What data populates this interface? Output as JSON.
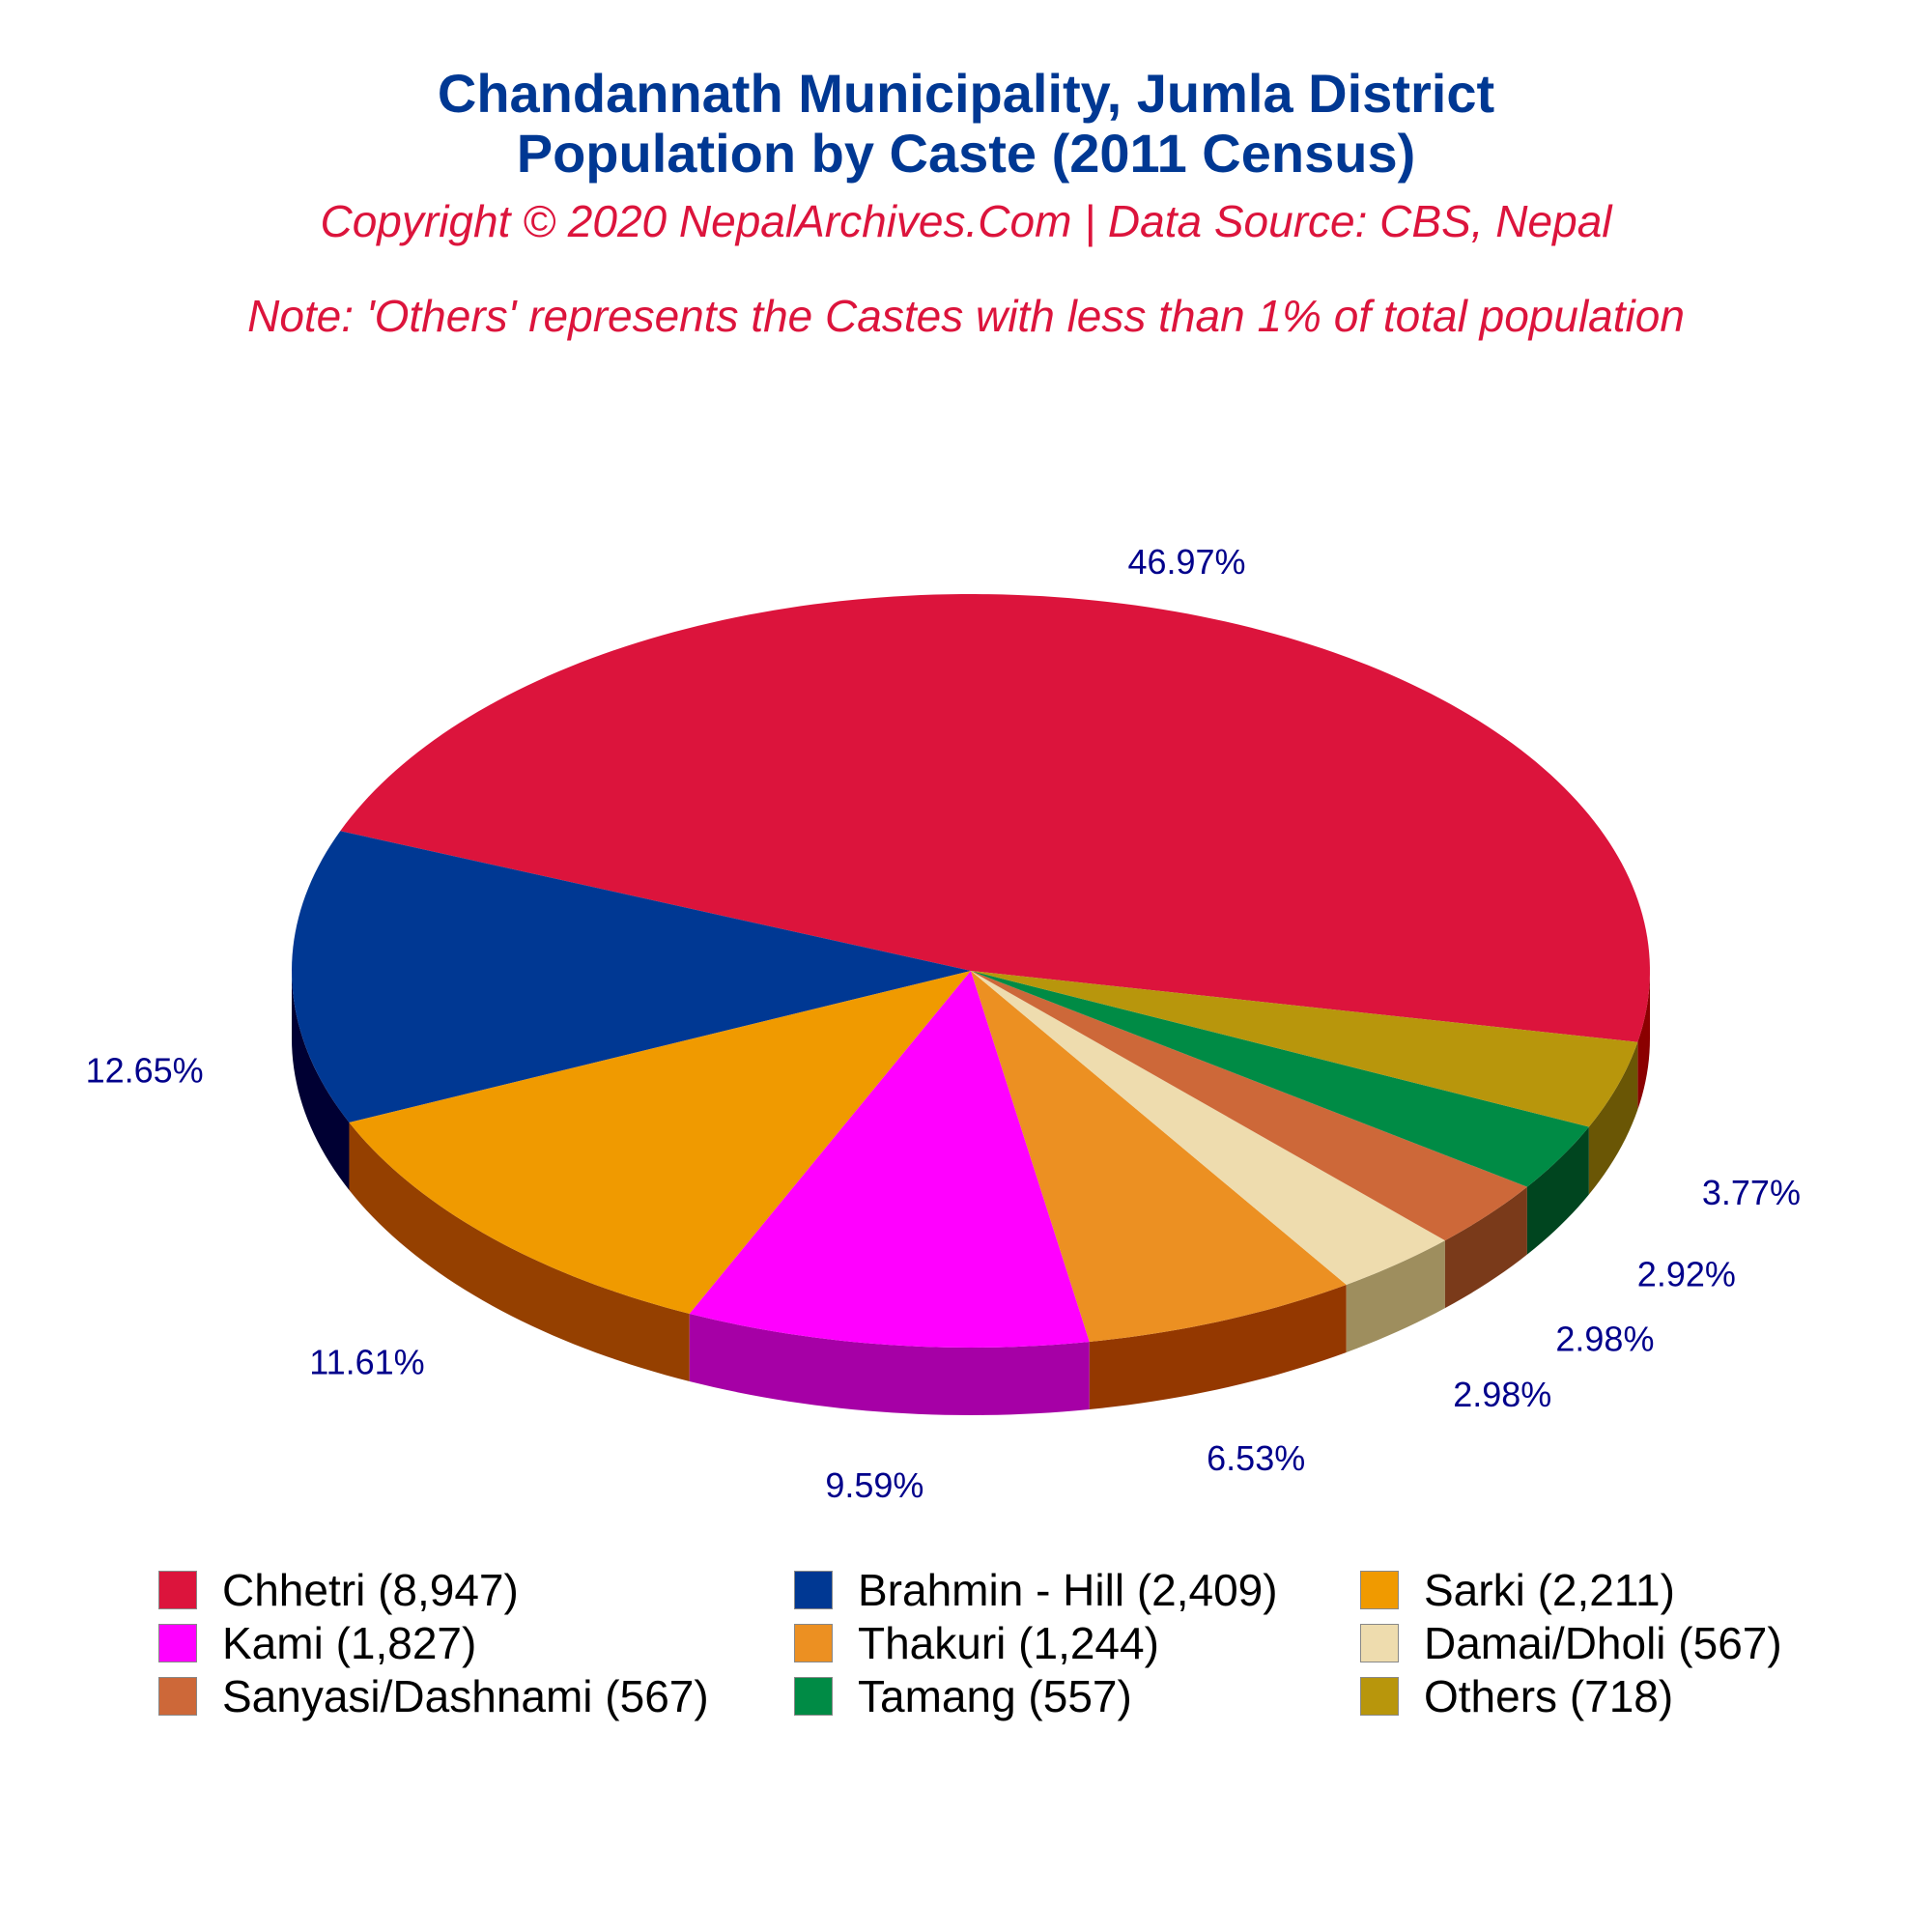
{
  "header": {
    "title_line1": "Chandannath Municipality, Jumla District",
    "title_line2": "Population by Caste (2011 Census)",
    "copyright": "Copyright © 2020 NepalArchives.Com | Data Source: CBS, Nepal",
    "note": "Note: 'Others' represents the Castes with less than 1% of total population"
  },
  "chart_data": {
    "type": "pie",
    "title": "Chandannath Municipality, Jumla District Population by Caste (2011 Census)",
    "subtitle": "Copyright © 2020 NepalArchives.Com | Data Source: CBS, Nepal",
    "annotation": "Note: 'Others' represents the Castes with less than 1% of total population",
    "legend_placement": "bottom",
    "slices": [
      {
        "label": "Chhetri (8,947)",
        "value": 8947,
        "percent_label": "46.97%",
        "color": "#dc143c",
        "side_color": "#8b0000"
      },
      {
        "label": "Brahmin - Hill (2,409)",
        "value": 2409,
        "percent_label": "12.65%",
        "color": "#003893",
        "side_color": "#000033"
      },
      {
        "label": "Sarki (2,211)",
        "value": 2211,
        "percent_label": "11.61%",
        "color": "#f09a00",
        "side_color": "#954000"
      },
      {
        "label": "Kami (1,827)",
        "value": 1827,
        "percent_label": "9.59%",
        "color": "#ff00ff",
        "side_color": "#a600a6"
      },
      {
        "label": "Thakuri (1,244)",
        "value": 1244,
        "percent_label": "6.53%",
        "color": "#ec9022",
        "side_color": "#943800"
      },
      {
        "label": "Damai/Dholi (567)",
        "value": 567,
        "percent_label": "2.98%",
        "color": "#eedcae",
        "side_color": "#9e8e5e"
      },
      {
        "label": "Sanyasi/Dashnami (567)",
        "value": 567,
        "percent_label": "2.98%",
        "color": "#cd6839",
        "side_color": "#7a3a1a"
      },
      {
        "label": "Tamang (557)",
        "value": 557,
        "percent_label": "2.92%",
        "color": "#008b45",
        "side_color": "#00451f"
      },
      {
        "label": "Others (718)",
        "value": 718,
        "percent_label": "3.77%",
        "color": "#b8960c",
        "side_color": "#6a5605"
      }
    ]
  }
}
